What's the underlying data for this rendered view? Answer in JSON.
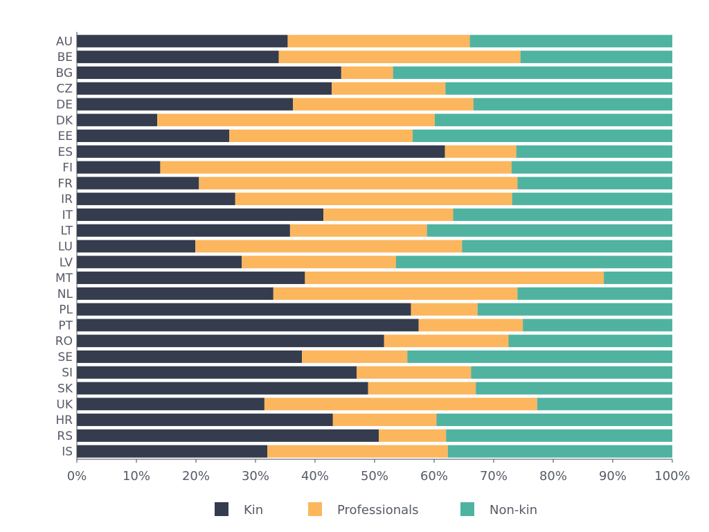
{
  "chart_data": {
    "type": "bar",
    "orientation": "horizontal",
    "stacked": true,
    "categories": [
      "AU",
      "BE",
      "BG",
      "CZ",
      "DE",
      "DK",
      "EE",
      "ES",
      "FI",
      "FR",
      "IR",
      "IT",
      "LT",
      "LU",
      "LV",
      "MT",
      "NL",
      "PL",
      "PT",
      "RO",
      "SE",
      "SI",
      "SK",
      "UK",
      "HR",
      "RS",
      "IS"
    ],
    "series": [
      {
        "name": "Kin",
        "color": "#343c4e",
        "values": [
          35.4,
          33.9,
          44.4,
          42.8,
          36.3,
          13.5,
          25.6,
          61.8,
          14.0,
          20.5,
          26.6,
          41.4,
          35.8,
          19.9,
          27.7,
          38.3,
          33.0,
          56.1,
          57.4,
          51.6,
          37.8,
          47.0,
          48.9,
          31.5,
          43.0,
          50.7,
          32.0
        ]
      },
      {
        "name": "Professionals",
        "color": "#fbb65e",
        "values": [
          30.6,
          40.6,
          8.7,
          19.1,
          30.3,
          46.6,
          30.8,
          12.0,
          59.0,
          53.5,
          46.5,
          21.8,
          23.0,
          44.8,
          25.9,
          50.2,
          41.0,
          11.2,
          17.5,
          20.9,
          17.7,
          19.2,
          18.1,
          45.8,
          17.4,
          11.3,
          30.3
        ]
      },
      {
        "name": "Non-kin",
        "color": "#4fb3a0",
        "values": [
          34.0,
          25.5,
          46.9,
          38.1,
          33.4,
          39.9,
          43.6,
          26.2,
          27.0,
          26.0,
          26.9,
          36.8,
          41.2,
          35.3,
          46.4,
          11.5,
          26.0,
          32.7,
          25.1,
          27.5,
          44.5,
          33.8,
          33.0,
          22.7,
          39.6,
          38.0,
          37.7
        ]
      }
    ],
    "x_ticks": [
      "0%",
      "10%",
      "20%",
      "30%",
      "40%",
      "50%",
      "60%",
      "70%",
      "80%",
      "90%",
      "100%"
    ],
    "xlim": [
      0,
      100
    ],
    "grid": false,
    "legend_position": "bottom"
  }
}
